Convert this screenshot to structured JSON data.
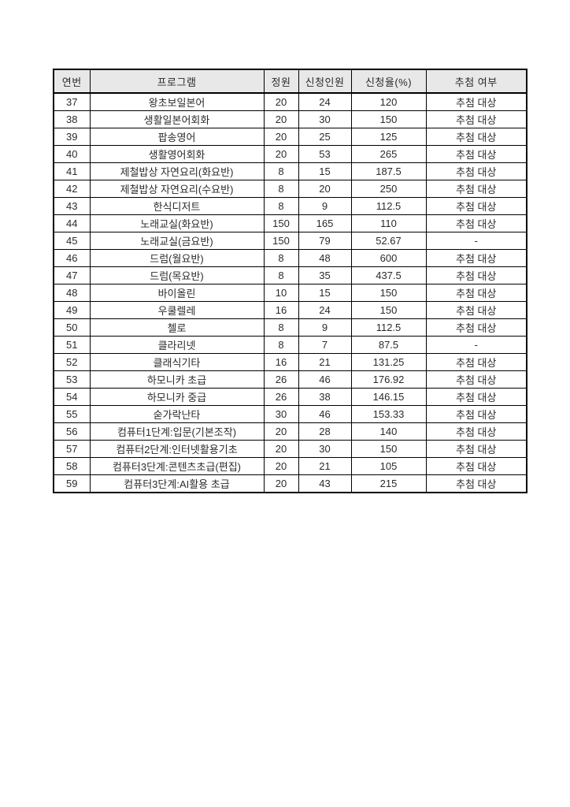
{
  "page": {
    "background_color": "#ffffff",
    "header_bg_color": "#e8e8e8",
    "border_color": "#000000",
    "text_color": "#2b2b2b"
  },
  "table": {
    "columns": [
      {
        "key": "no",
        "label": "연번"
      },
      {
        "key": "program",
        "label": "프로그램"
      },
      {
        "key": "capacity",
        "label": "정원"
      },
      {
        "key": "applicants",
        "label": "신청인원"
      },
      {
        "key": "rate",
        "label": "신청율(%)"
      },
      {
        "key": "lottery",
        "label": "추첨 여부"
      }
    ],
    "rows": [
      {
        "no": "37",
        "program": "왕초보일본어",
        "capacity": "20",
        "applicants": "24",
        "rate": "120",
        "lottery": "추첨 대상"
      },
      {
        "no": "38",
        "program": "생활일본어회화",
        "capacity": "20",
        "applicants": "30",
        "rate": "150",
        "lottery": "추첨 대상"
      },
      {
        "no": "39",
        "program": "팝송영어",
        "capacity": "20",
        "applicants": "25",
        "rate": "125",
        "lottery": "추첨 대상"
      },
      {
        "no": "40",
        "program": "생활영어회화",
        "capacity": "20",
        "applicants": "53",
        "rate": "265",
        "lottery": "추첨 대상"
      },
      {
        "no": "41",
        "program": "제철밥상 자연요리(화요반)",
        "capacity": "8",
        "applicants": "15",
        "rate": "187.5",
        "lottery": "추첨 대상"
      },
      {
        "no": "42",
        "program": "제철밥상 자연요리(수요반)",
        "capacity": "8",
        "applicants": "20",
        "rate": "250",
        "lottery": "추첨 대상"
      },
      {
        "no": "43",
        "program": "한식디저트",
        "capacity": "8",
        "applicants": "9",
        "rate": "112.5",
        "lottery": "추첨 대상"
      },
      {
        "no": "44",
        "program": "노래교실(화요반)",
        "capacity": "150",
        "applicants": "165",
        "rate": "110",
        "lottery": "추첨 대상"
      },
      {
        "no": "45",
        "program": "노래교실(금요반)",
        "capacity": "150",
        "applicants": "79",
        "rate": "52.67",
        "lottery": "-"
      },
      {
        "no": "46",
        "program": "드럼(월요반)",
        "capacity": "8",
        "applicants": "48",
        "rate": "600",
        "lottery": "추첨 대상"
      },
      {
        "no": "47",
        "program": "드럼(목요반)",
        "capacity": "8",
        "applicants": "35",
        "rate": "437.5",
        "lottery": "추첨 대상"
      },
      {
        "no": "48",
        "program": "바이올린",
        "capacity": "10",
        "applicants": "15",
        "rate": "150",
        "lottery": "추첨 대상"
      },
      {
        "no": "49",
        "program": "우쿨렐레",
        "capacity": "16",
        "applicants": "24",
        "rate": "150",
        "lottery": "추첨 대상"
      },
      {
        "no": "50",
        "program": "첼로",
        "capacity": "8",
        "applicants": "9",
        "rate": "112.5",
        "lottery": "추첨 대상"
      },
      {
        "no": "51",
        "program": "클라리넷",
        "capacity": "8",
        "applicants": "7",
        "rate": "87.5",
        "lottery": "-"
      },
      {
        "no": "52",
        "program": "클래식기타",
        "capacity": "16",
        "applicants": "21",
        "rate": "131.25",
        "lottery": "추첨 대상"
      },
      {
        "no": "53",
        "program": "하모니카 초급",
        "capacity": "26",
        "applicants": "46",
        "rate": "176.92",
        "lottery": "추첨 대상"
      },
      {
        "no": "54",
        "program": "하모니카 중급",
        "capacity": "26",
        "applicants": "38",
        "rate": "146.15",
        "lottery": "추첨 대상"
      },
      {
        "no": "55",
        "program": "숟가락난타",
        "capacity": "30",
        "applicants": "46",
        "rate": "153.33",
        "lottery": "추첨 대상"
      },
      {
        "no": "56",
        "program": "컴퓨터1단계:입문(기본조작)",
        "capacity": "20",
        "applicants": "28",
        "rate": "140",
        "lottery": "추첨 대상"
      },
      {
        "no": "57",
        "program": "컴퓨터2단계:인터넷활용기초",
        "capacity": "20",
        "applicants": "30",
        "rate": "150",
        "lottery": "추첨 대상"
      },
      {
        "no": "58",
        "program": "컴퓨터3단계:콘텐츠초급(편집)",
        "capacity": "20",
        "applicants": "21",
        "rate": "105",
        "lottery": "추첨 대상"
      },
      {
        "no": "59",
        "program": "컴퓨터3단계:AI활용 초급",
        "capacity": "20",
        "applicants": "43",
        "rate": "215",
        "lottery": "추첨 대상"
      }
    ]
  }
}
